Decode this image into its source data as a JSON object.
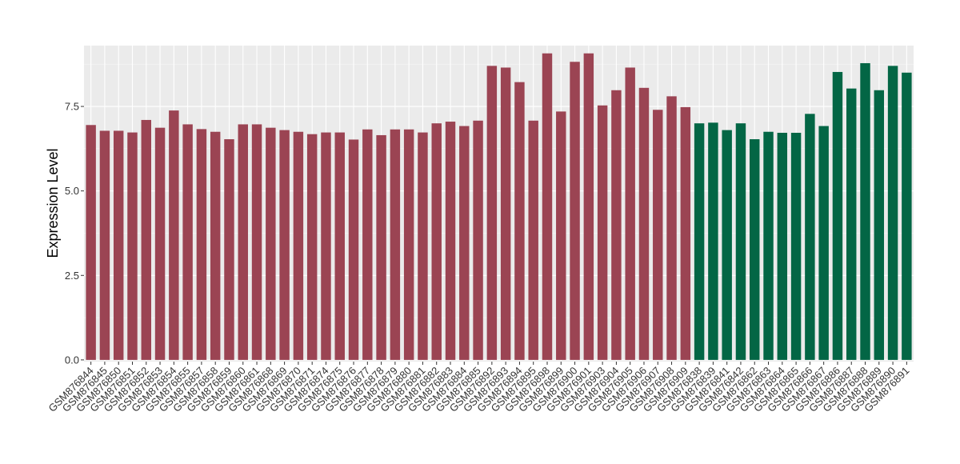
{
  "chart_data": {
    "type": "bar",
    "ylabel": "Expression Level",
    "xlabel": "",
    "ylim": [
      -0.05,
      9.3
    ],
    "yticks": [
      0.0,
      2.5,
      5.0,
      7.5
    ],
    "ytick_labels": [
      "0.0",
      "2.5",
      "5.0",
      "7.5"
    ],
    "grid": true,
    "background": "#EBEBEB",
    "grid_major_color": "#FFFFFF",
    "colors": {
      "group_a": "#9B4453",
      "group_b": "#036645"
    },
    "categories": [
      "GSM876844",
      "GSM876845",
      "GSM876850",
      "GSM876851",
      "GSM876852",
      "GSM876853",
      "GSM876854",
      "GSM876855",
      "GSM876857",
      "GSM876858",
      "GSM876859",
      "GSM876860",
      "GSM876861",
      "GSM876868",
      "GSM876869",
      "GSM876870",
      "GSM876871",
      "GSM876874",
      "GSM876875",
      "GSM876876",
      "GSM876877",
      "GSM876878",
      "GSM876879",
      "GSM876880",
      "GSM876881",
      "GSM876882",
      "GSM876883",
      "GSM876884",
      "GSM876885",
      "GSM876892",
      "GSM876893",
      "GSM876894",
      "GSM876895",
      "GSM876898",
      "GSM876899",
      "GSM876900",
      "GSM876901",
      "GSM876903",
      "GSM876904",
      "GSM876905",
      "GSM876906",
      "GSM876907",
      "GSM876908",
      "GSM876909",
      "GSM876838",
      "GSM876839",
      "GSM876841",
      "GSM876842",
      "GSM876862",
      "GSM876863",
      "GSM876864",
      "GSM876865",
      "GSM876866",
      "GSM876867",
      "GSM876886",
      "GSM876887",
      "GSM876888",
      "GSM876889",
      "GSM876890",
      "GSM876891"
    ],
    "values": [
      6.95,
      6.78,
      6.78,
      6.73,
      7.1,
      6.87,
      7.38,
      6.97,
      6.83,
      6.75,
      6.53,
      6.97,
      6.97,
      6.87,
      6.8,
      6.75,
      6.68,
      6.73,
      6.73,
      6.52,
      6.82,
      6.65,
      6.82,
      6.82,
      6.73,
      7.0,
      7.05,
      6.92,
      7.08,
      8.7,
      8.65,
      8.22,
      7.08,
      9.07,
      7.35,
      8.82,
      9.07,
      7.53,
      7.98,
      8.65,
      8.05,
      7.4,
      7.8,
      7.48,
      7.0,
      7.02,
      6.8,
      7.0,
      6.53,
      6.75,
      6.72,
      6.72,
      7.28,
      6.92,
      8.52,
      8.03,
      8.78,
      7.98,
      8.7,
      8.5
    ],
    "groups": [
      "a",
      "a",
      "a",
      "a",
      "a",
      "a",
      "a",
      "a",
      "a",
      "a",
      "a",
      "a",
      "a",
      "a",
      "a",
      "a",
      "a",
      "a",
      "a",
      "a",
      "a",
      "a",
      "a",
      "a",
      "a",
      "a",
      "a",
      "a",
      "a",
      "a",
      "a",
      "a",
      "a",
      "a",
      "a",
      "a",
      "a",
      "a",
      "a",
      "a",
      "a",
      "a",
      "a",
      "a",
      "b",
      "b",
      "b",
      "b",
      "b",
      "b",
      "b",
      "b",
      "b",
      "b",
      "b",
      "b",
      "b",
      "b",
      "b",
      "b"
    ]
  }
}
